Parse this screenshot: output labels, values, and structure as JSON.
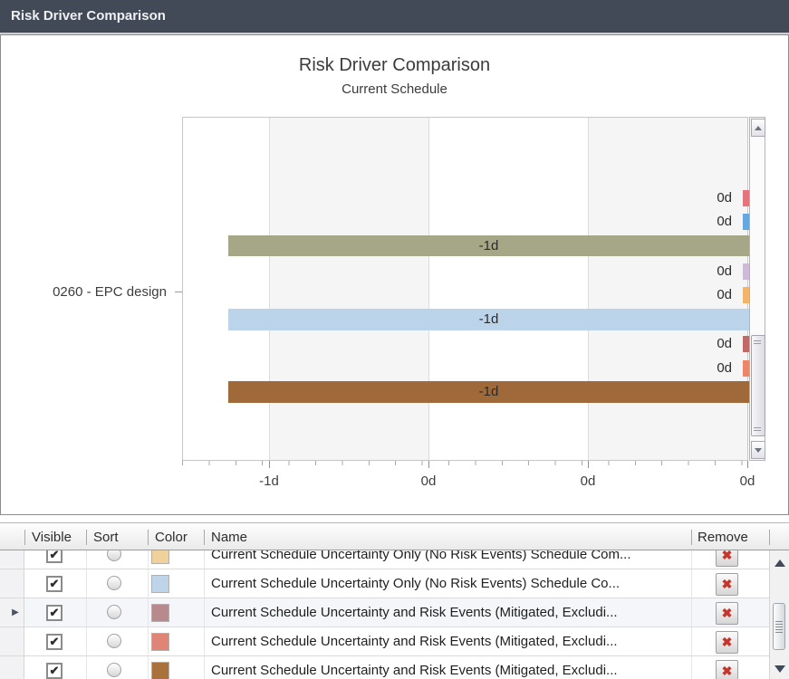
{
  "window": {
    "title": "Risk Driver Comparison"
  },
  "chart": {
    "title": "Risk Driver Comparison",
    "subtitle": "Current Schedule",
    "y_category": "0260 - EPC design",
    "x_ticks": [
      "-1d",
      "0d",
      "0d",
      "0d"
    ],
    "bars": [
      {
        "label": "0d",
        "color": "#e4737c"
      },
      {
        "label": "0d",
        "color": "#66a7e0"
      },
      {
        "label": "-1d",
        "color": "#a5a787"
      },
      {
        "label": "0d",
        "color": "#cdb9d8"
      },
      {
        "label": "0d",
        "color": "#f3b469"
      },
      {
        "label": "-1d",
        "color": "#bcd4ea"
      },
      {
        "label": "0d",
        "color": "#bf6a66"
      },
      {
        "label": "0d",
        "color": "#ef8568"
      },
      {
        "label": "-1d",
        "color": "#a0693a"
      }
    ]
  },
  "chart_data": {
    "type": "bar",
    "orientation": "horizontal",
    "title": "Risk Driver Comparison",
    "subtitle": "Current Schedule",
    "categories": [
      "0260 - EPC design"
    ],
    "series": [
      {
        "label": "0d",
        "value_days": 0,
        "color": "#e4737c"
      },
      {
        "label": "0d",
        "value_days": 0,
        "color": "#66a7e0"
      },
      {
        "label": "-1d",
        "value_days": -1,
        "color": "#a5a787"
      },
      {
        "label": "0d",
        "value_days": 0,
        "color": "#cdb9d8"
      },
      {
        "label": "0d",
        "value_days": 0,
        "color": "#f3b469"
      },
      {
        "label": "-1d",
        "value_days": -1,
        "color": "#bcd4ea"
      },
      {
        "label": "0d",
        "value_days": 0,
        "color": "#bf6a66"
      },
      {
        "label": "0d",
        "value_days": 0,
        "color": "#ef8568"
      },
      {
        "label": "-1d",
        "value_days": -1,
        "color": "#a0693a"
      }
    ],
    "x_tick_labels": [
      "-1d",
      "0d",
      "0d",
      "0d"
    ],
    "gridlines": true,
    "legend": false
  },
  "table": {
    "headers": {
      "visible": "Visible",
      "sort": "Sort",
      "color": "Color",
      "name": "Name",
      "remove": "Remove"
    },
    "rows": [
      {
        "checked": true,
        "color": "#f0d09b",
        "name": "Current Schedule Uncertainty Only (No Risk Events) Schedule Com..."
      },
      {
        "checked": true,
        "color": "#bdd4e9",
        "name": "Current Schedule Uncertainty Only (No Risk Events) Schedule Co..."
      },
      {
        "checked": true,
        "color": "#b8898d",
        "name": "Current Schedule Uncertainty and Risk Events (Mitigated, Excludi..."
      },
      {
        "checked": true,
        "color": "#e08575",
        "name": "Current Schedule Uncertainty and Risk Events (Mitigated, Excludi..."
      },
      {
        "checked": true,
        "color": "#a9713b",
        "name": "Current Schedule Uncertainty and Risk Events (Mitigated, Excludi..."
      }
    ]
  },
  "glyphs": {
    "check": "✔",
    "remove": "✖",
    "row_indicator": "▶"
  }
}
